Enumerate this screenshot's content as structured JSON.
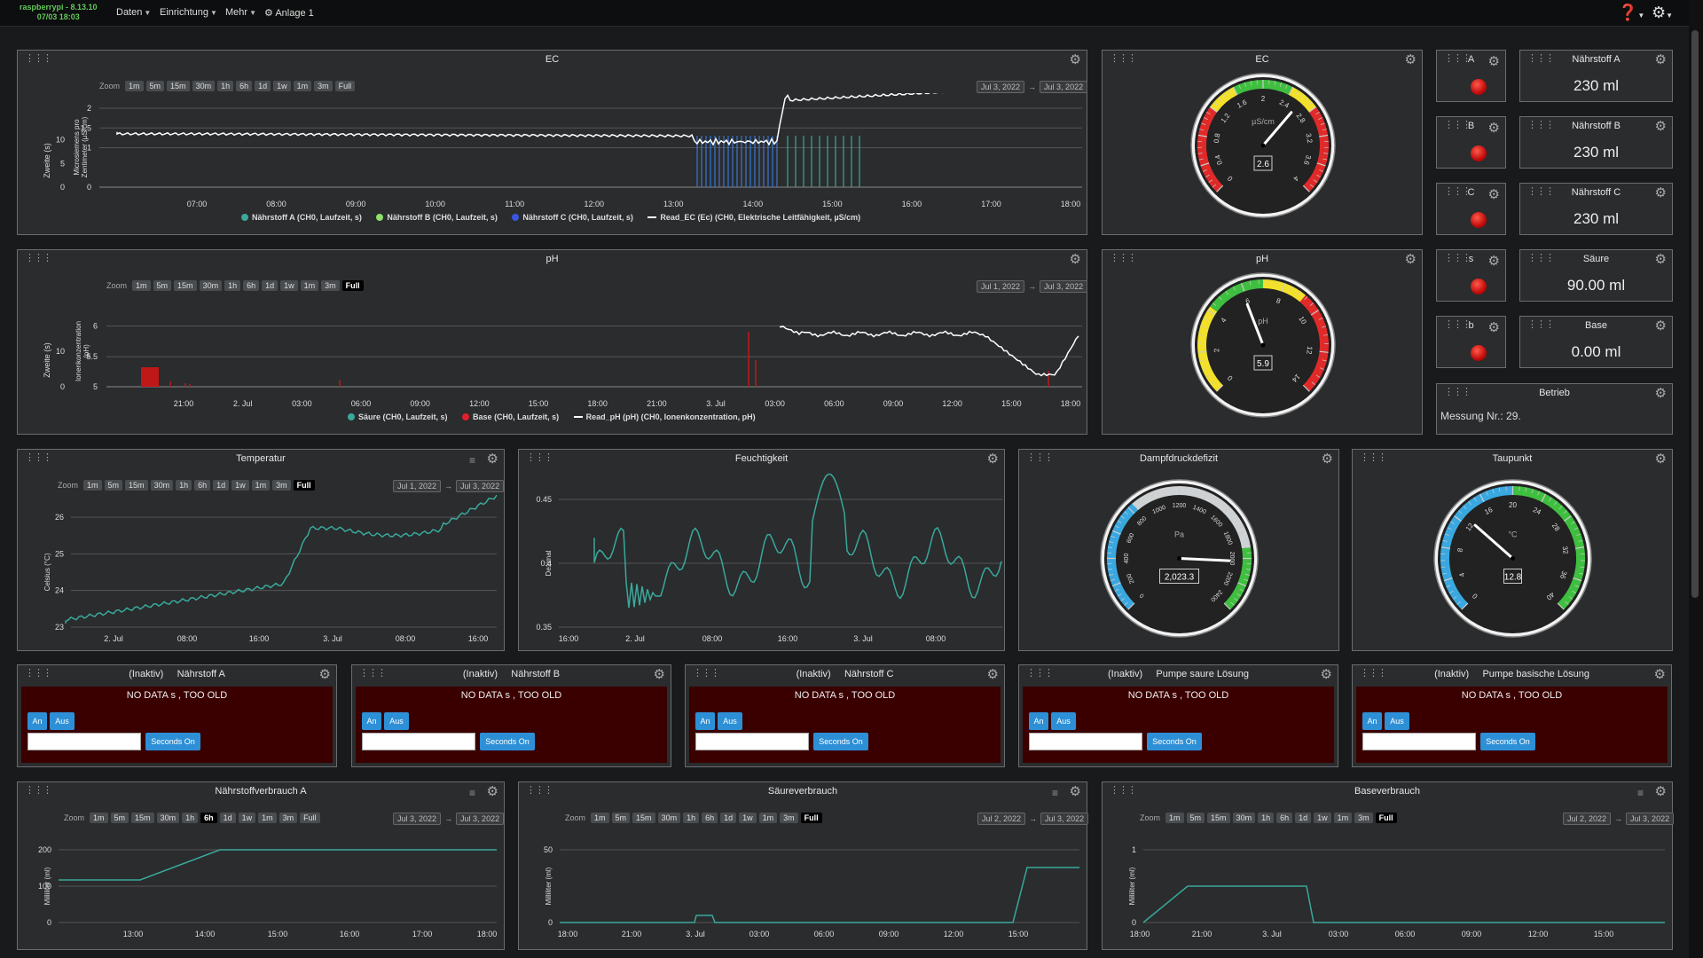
{
  "top": {
    "host": "raspberrypi - 8.13.10",
    "date": "07/03 18:03",
    "menu": [
      "Daten",
      "Einrichtung",
      "Mehr",
      "Anlage 1"
    ]
  },
  "zoom_label": "Zoom",
  "zoom_buttons": [
    "1m",
    "5m",
    "15m",
    "30m",
    "1h",
    "6h",
    "1d",
    "1w",
    "1m",
    "3m",
    "Full"
  ],
  "ec_chart": {
    "title": "EC",
    "from": "Jul 3, 2022",
    "to": "Jul 3, 2022",
    "y1label": "Zweite (s)",
    "y2label": "Microsiemens pro Zentimeter (µS/cm)",
    "legend": [
      "Nährstoff A (CH0, Laufzeit, s)",
      "Nährstoff B (CH0, Laufzeit, s)",
      "Nährstoff C (CH0, Laufzeit, s)",
      "Read_EC (Ec) (CH0, Elektrische Leitfähigkeit, µS/cm)"
    ]
  },
  "ph_chart": {
    "title": "pH",
    "from": "Jul 1, 2022",
    "to": "Jul 3, 2022",
    "y1label": "Zweite (s)",
    "y2label": "Ionenkonzentration (pH)",
    "legend": [
      "Säure (CH0, Laufzeit, s)",
      "Base (CH0, Laufzeit, s)",
      "Read_pH (pH) (CH0, Ionenkonzentration, pH)"
    ]
  },
  "ec_gauge": {
    "title": "EC",
    "unit": "µS/cm",
    "value": "2.6",
    "ticks": [
      "0",
      "0.4",
      "0.8",
      "1.2",
      "1.6",
      "2",
      "2.4",
      "2.8",
      "3.2",
      "3.6",
      "4"
    ]
  },
  "ph_gauge": {
    "title": "pH",
    "unit": "pH",
    "value": "5.9",
    "ticks": [
      "0",
      "2",
      "4",
      "6",
      "8",
      "10",
      "12",
      "14"
    ]
  },
  "vpd_gauge": {
    "title": "Dampfdruckdefizit",
    "unit": "Pa",
    "value": "2,023.3",
    "ticks": [
      "0",
      "200",
      "400",
      "600",
      "800",
      "1000",
      "1200",
      "1400",
      "1600",
      "1800",
      "2000",
      "2200",
      "2400"
    ]
  },
  "dew_gauge": {
    "title": "Taupunkt",
    "unit": "°C",
    "value": "12.8",
    "ticks": [
      "0",
      "4",
      "8",
      "12",
      "16",
      "20",
      "24",
      "28",
      "32",
      "36",
      "40"
    ]
  },
  "indicators": [
    {
      "label": "A"
    },
    {
      "label": "B"
    },
    {
      "label": "C"
    },
    {
      "label": "s"
    },
    {
      "label": "b"
    }
  ],
  "values": [
    {
      "title": "Nährstoff A",
      "value": "230 ml"
    },
    {
      "title": "Nährstoff B",
      "value": "230 ml"
    },
    {
      "title": "Nährstoff C",
      "value": "230 ml"
    },
    {
      "title": "Säure",
      "value": "90.00 ml"
    },
    {
      "title": "Base",
      "value": "0.00 ml"
    }
  ],
  "betrieb": {
    "title": "Betrieb",
    "text": "Messung Nr.: 29."
  },
  "temp_chart": {
    "title": "Temperatur",
    "from": "Jul 1, 2022",
    "to": "Jul 3, 2022",
    "ylabel": "Celsius (°C)",
    "yticks": [
      "23",
      "24",
      "25",
      "26"
    ],
    "xticks": [
      "2. Jul",
      "08:00",
      "16:00",
      "3. Jul",
      "08:00",
      "16:00"
    ]
  },
  "hum_chart": {
    "title": "Feuchtigkeit",
    "ylabel": "Dezimal",
    "yticks": [
      "0.35",
      "0.4",
      "0.45"
    ],
    "xticks": [
      "16:00",
      "2. Jul",
      "08:00",
      "16:00",
      "3. Jul",
      "08:00"
    ]
  },
  "outputs": [
    {
      "state": "(Inaktiv)",
      "name": "Nährstoff A"
    },
    {
      "state": "(Inaktiv)",
      "name": "Nährstoff B"
    },
    {
      "state": "(Inaktiv)",
      "name": "Nährstoff C"
    },
    {
      "state": "(Inaktiv)",
      "name": "Pumpe saure Lösung"
    },
    {
      "state": "(Inaktiv)",
      "name": "Pumpe basische Lösung"
    }
  ],
  "output_texts": {
    "nodata": "NO DATA s , TOO OLD",
    "on": "An",
    "off": "Aus",
    "seconds": "Seconds On"
  },
  "cons": [
    {
      "title": "Nährstoffverbrauch A",
      "from": "Jul 3, 2022",
      "to": "Jul 3, 2022",
      "ylabel": "Milliliter (ml)",
      "yticks": [
        "0",
        "100",
        "200"
      ],
      "xticks": [
        "13:00",
        "14:00",
        "15:00",
        "16:00",
        "17:00",
        "18:00"
      ]
    },
    {
      "title": "Säureverbrauch",
      "from": "Jul 2, 2022",
      "to": "Jul 3, 2022",
      "ylabel": "Milliliter (ml)",
      "yticks": [
        "0",
        "50"
      ],
      "xticks": [
        "18:00",
        "21:00",
        "3. Jul",
        "03:00",
        "06:00",
        "09:00",
        "12:00",
        "15:00"
      ]
    },
    {
      "title": "Baseverbrauch",
      "from": "Jul 2, 2022",
      "to": "Jul 3, 2022",
      "ylabel": "Milliliter (ml)",
      "yticks": [
        "0",
        "1"
      ],
      "xticks": [
        "18:00",
        "21:00",
        "3. Jul",
        "03:00",
        "06:00",
        "09:00",
        "12:00",
        "15:00"
      ]
    }
  ],
  "chart_data": [
    {
      "type": "line",
      "title": "EC",
      "x": [
        "07:00",
        "08:00",
        "09:00",
        "10:00",
        "11:00",
        "12:00",
        "13:00",
        "14:00",
        "15:00",
        "16:00",
        "17:00",
        "18:00"
      ],
      "series": [
        {
          "name": "Read_EC (Ec) (CH0, Elektrische Leitfähigkeit, µS/cm)",
          "values": [
            1.4,
            1.35,
            1.35,
            1.3,
            1.3,
            1.35,
            1.3,
            2.2,
            2.3,
            2.4,
            2.5,
            2.6
          ]
        }
      ],
      "y1ticks": [
        "0",
        "5",
        "10"
      ],
      "y2ticks": [
        "0",
        "1",
        "1.5",
        "2"
      ]
    },
    {
      "type": "line",
      "title": "pH",
      "x": [
        "21:00",
        "2. Jul",
        "03:00",
        "06:00",
        "09:00",
        "12:00",
        "15:00",
        "18:00",
        "21:00",
        "3. Jul",
        "03:00",
        "06:00",
        "09:00",
        "12:00",
        "15:00",
        "18:00"
      ],
      "series": [
        {
          "name": "Read_pH (pH) (CH0, Ionenkonzentration, pH)",
          "values": [
            null,
            null,
            null,
            null,
            null,
            null,
            null,
            null,
            null,
            null,
            6.0,
            5.9,
            5.8,
            5.8,
            5.2,
            5.9
          ]
        }
      ],
      "y1ticks": [
        "0",
        "10"
      ],
      "y2ticks": [
        "5",
        "5.5",
        "6"
      ]
    }
  ]
}
